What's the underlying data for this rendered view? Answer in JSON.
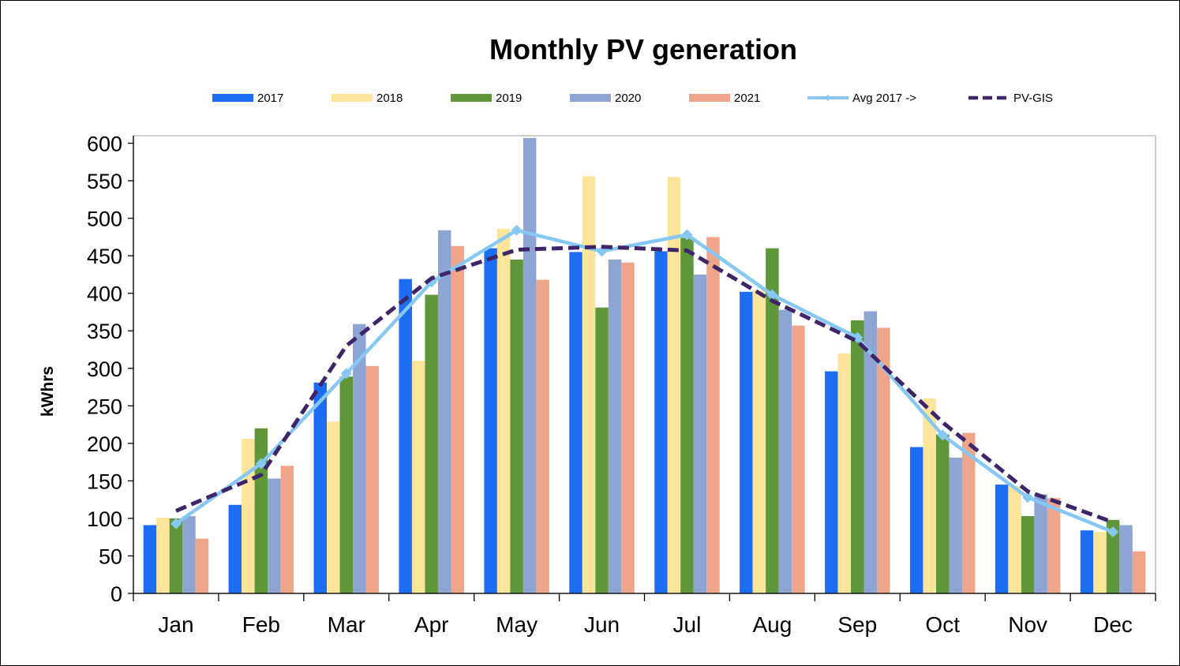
{
  "chart_data": {
    "type": "bar",
    "title": "Monthly PV generation",
    "xlabel": "",
    "ylabel": "kWhrs",
    "ylim": [
      0,
      610
    ],
    "yticks": [
      0,
      50,
      100,
      150,
      200,
      250,
      300,
      350,
      400,
      450,
      500,
      550,
      600
    ],
    "grid": false,
    "legend_position": "top",
    "categories": [
      "Jan",
      "Feb",
      "Mar",
      "Apr",
      "May",
      "Jun",
      "Jul",
      "Aug",
      "Sep",
      "Oct",
      "Nov",
      "Dec"
    ],
    "series": [
      {
        "name": "2017",
        "type": "bar",
        "color": "#1B6EF3",
        "values": [
          91,
          118,
          281,
          419,
          460,
          455,
          456,
          402,
          296,
          195,
          145,
          84
        ]
      },
      {
        "name": "2018",
        "type": "bar",
        "color": "#FCE59A",
        "values": [
          101,
          206,
          229,
          310,
          486,
          556,
          555,
          404,
          320,
          260,
          143,
          82
        ]
      },
      {
        "name": "2019",
        "type": "bar",
        "color": "#5F963A",
        "values": [
          100,
          220,
          289,
          398,
          445,
          381,
          474,
          460,
          364,
          212,
          103,
          98
        ]
      },
      {
        "name": "2020",
        "type": "bar",
        "color": "#8EA4D2",
        "values": [
          103,
          153,
          359,
          484,
          607,
          445,
          425,
          378,
          376,
          181,
          132,
          91
        ]
      },
      {
        "name": "2021",
        "type": "bar",
        "color": "#EFA58A",
        "values": [
          73,
          170,
          303,
          463,
          418,
          441,
          475,
          357,
          354,
          214,
          127,
          56
        ]
      },
      {
        "name": "Avg 2017 ->",
        "type": "line",
        "color": "#86C7F4",
        "values": [
          93,
          173,
          293,
          415,
          484,
          456,
          478,
          398,
          341,
          211,
          128,
          82
        ]
      },
      {
        "name": "PV-GIS",
        "type": "line",
        "dashed": true,
        "color": "#3E2469",
        "values": [
          110,
          158,
          330,
          420,
          458,
          462,
          457,
          390,
          336,
          228,
          136,
          95
        ]
      }
    ]
  }
}
